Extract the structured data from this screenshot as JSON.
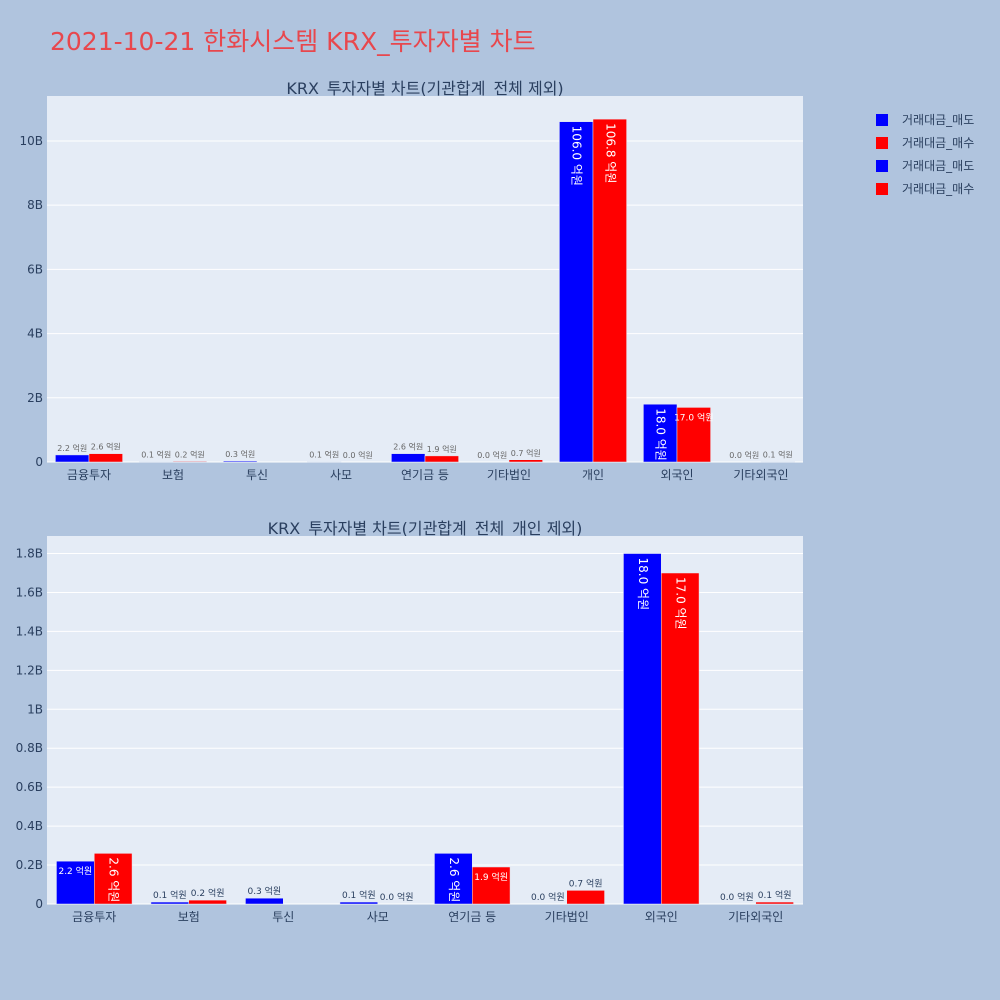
{
  "page": {
    "title": "2021-10-21 한화시스템 KRX_투자자별 차트"
  },
  "colors": {
    "sell": "#0000ff",
    "buy": "#ff0000"
  },
  "legend": [
    {
      "label": "거래대금_매도",
      "color": "#0000ff"
    },
    {
      "label": "거래대금_매수",
      "color": "#ff0000"
    },
    {
      "label": "거래대금_매도",
      "color": "#0000ff"
    },
    {
      "label": "거래대금_매수",
      "color": "#ff0000"
    }
  ],
  "chart_data": [
    {
      "type": "bar",
      "title": "KRX_투자자별 차트(기관합계_전체 제외)",
      "categories": [
        "금융투자",
        "보험",
        "투신",
        "사모",
        "연기금 등",
        "기타법인",
        "개인",
        "외국인",
        "기타외국인"
      ],
      "series": [
        {
          "name": "거래대금_매도",
          "color": "#0000ff",
          "values": [
            0.22,
            0.01,
            0.03,
            0.01,
            0.26,
            0.0,
            10.6,
            1.8,
            0.0
          ],
          "labels": [
            "2.2 억원",
            "0.1 억원",
            "0.3 억원",
            "0.1 억원",
            "2.6 억원",
            "0.0 억원",
            "106.0 억원",
            "18.0 억원",
            "0.0 억원"
          ]
        },
        {
          "name": "거래대금_매수",
          "color": "#ff0000",
          "values": [
            0.26,
            0.02,
            null,
            0.0,
            0.19,
            0.07,
            10.68,
            1.7,
            0.01
          ],
          "labels": [
            "2.6 억원",
            "0.2 억원",
            null,
            "0.0 억원",
            "1.9 억원",
            "0.7 억원",
            "106.8 억원",
            "17.0 억원",
            "0.1 억원"
          ]
        }
      ],
      "yticks": [
        0,
        2,
        4,
        6,
        8,
        10
      ],
      "ytick_labels": [
        "0",
        "2B",
        "4B",
        "6B",
        "8B",
        "10B"
      ],
      "ylim": [
        0,
        11.4
      ],
      "grid": true
    },
    {
      "type": "bar",
      "title": "KRX_투자자별 차트(기관합계_전체_개인 제외)",
      "categories": [
        "금융투자",
        "보험",
        "투신",
        "사모",
        "연기금 등",
        "기타법인",
        "외국인",
        "기타외국인"
      ],
      "series": [
        {
          "name": "거래대금_매도",
          "color": "#0000ff",
          "values": [
            0.22,
            0.01,
            0.03,
            0.01,
            0.26,
            0.0,
            1.8,
            0.0
          ],
          "labels": [
            "2.2 억원",
            "0.1 억원",
            "0.3 억원",
            "0.1 억원",
            "2.6 억원",
            "0.0 억원",
            "18.0 억원",
            "0.0 억원"
          ]
        },
        {
          "name": "거래대금_매수",
          "color": "#ff0000",
          "values": [
            0.26,
            0.02,
            null,
            0.0,
            0.19,
            0.07,
            1.7,
            0.01
          ],
          "labels": [
            "2.6 억원",
            "0.2 억원",
            null,
            "0.0 억원",
            "1.9 억원",
            "0.7 억원",
            "17.0 억원",
            "0.1 억원"
          ]
        }
      ],
      "yticks": [
        0,
        0.2,
        0.4,
        0.6,
        0.8,
        1.0,
        1.2,
        1.4,
        1.6,
        1.8
      ],
      "ytick_labels": [
        "0",
        "0.2B",
        "0.4B",
        "0.6B",
        "0.8B",
        "1B",
        "1.2B",
        "1.4B",
        "1.6B",
        "1.8B"
      ],
      "ylim": [
        0,
        1.89
      ],
      "grid": true
    }
  ]
}
